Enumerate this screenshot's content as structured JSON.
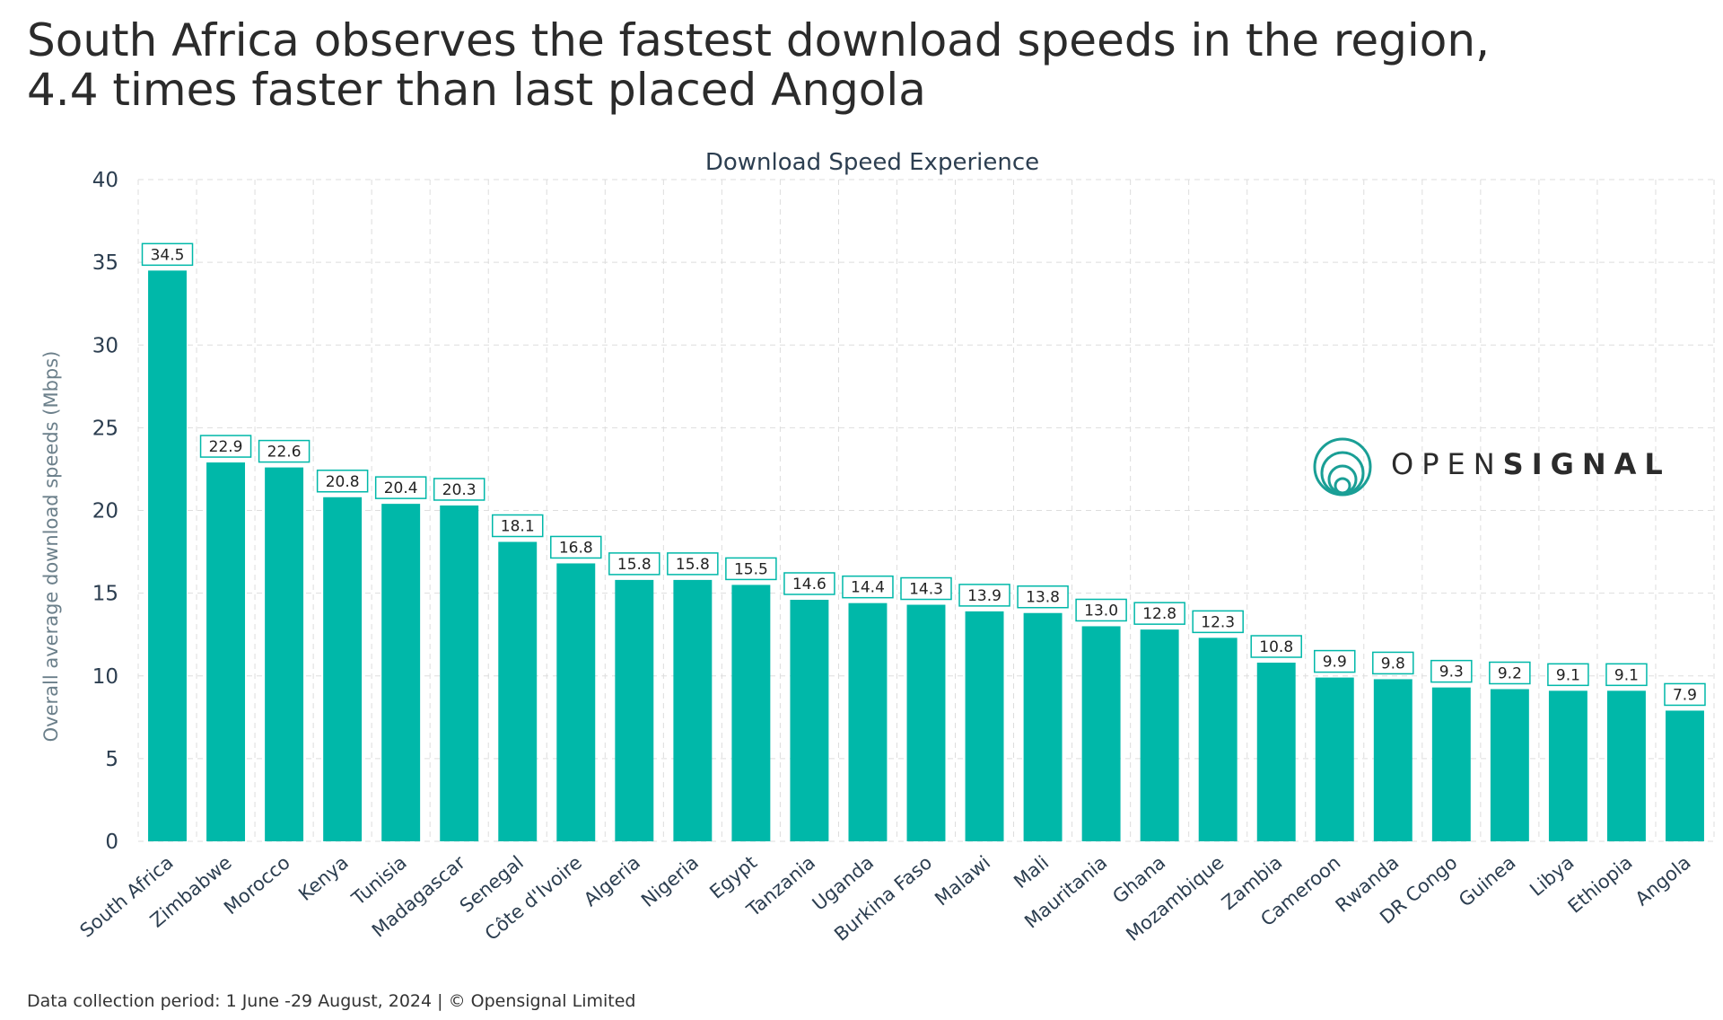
{
  "headline": {
    "line1": "South Africa observes the fastest download speeds in the region,",
    "line2": "4.4 times faster than last placed Angola"
  },
  "logo": {
    "part1": "OPEN",
    "part2": "SIGNAL",
    "icon": "opensignal-rings-icon",
    "color": "#1a9f96"
  },
  "footer": "Data collection period: 1 June -29 August, 2024 | © Opensignal Limited",
  "colors": {
    "bar": "#00b8a9",
    "grid": "#dddddd",
    "axis_text": "#2c3e50",
    "label_border": "#00b8a9"
  },
  "chart_data": {
    "type": "bar",
    "title": "Download Speed Experience",
    "xlabel": "",
    "ylabel": "Overall average download speeds (Mbps)",
    "ylim": [
      0,
      40
    ],
    "yticks": [
      0,
      5,
      10,
      15,
      20,
      25,
      30,
      35,
      40
    ],
    "grid": true,
    "categories": [
      "South Africa",
      "Zimbabwe",
      "Morocco",
      "Kenya",
      "Tunisia",
      "Madagascar",
      "Senegal",
      "Côte d'Ivoire",
      "Algeria",
      "Nigeria",
      "Egypt",
      "Tanzania",
      "Uganda",
      "Burkina Faso",
      "Malawi",
      "Mali",
      "Mauritania",
      "Ghana",
      "Mozambique",
      "Zambia",
      "Cameroon",
      "Rwanda",
      "DR Congo",
      "Guinea",
      "Libya",
      "Ethiopia",
      "Angola"
    ],
    "values": [
      34.5,
      22.9,
      22.6,
      20.8,
      20.4,
      20.3,
      18.1,
      16.8,
      15.8,
      15.8,
      15.5,
      14.6,
      14.4,
      14.3,
      13.9,
      13.8,
      13.0,
      12.8,
      12.3,
      10.8,
      9.9,
      9.8,
      9.3,
      9.2,
      9.1,
      9.1,
      7.9
    ],
    "value_labels": [
      "34.5",
      "22.9",
      "22.6",
      "20.8",
      "20.4",
      "20.3",
      "18.1",
      "16.8",
      "15.8",
      "15.8",
      "15.5",
      "14.6",
      "14.4",
      "14.3",
      "13.9",
      "13.8",
      "13.0",
      "12.8",
      "12.3",
      "10.8",
      "9.9",
      "9.8",
      "9.3",
      "9.2",
      "9.1",
      "9.1",
      "7.9"
    ]
  }
}
